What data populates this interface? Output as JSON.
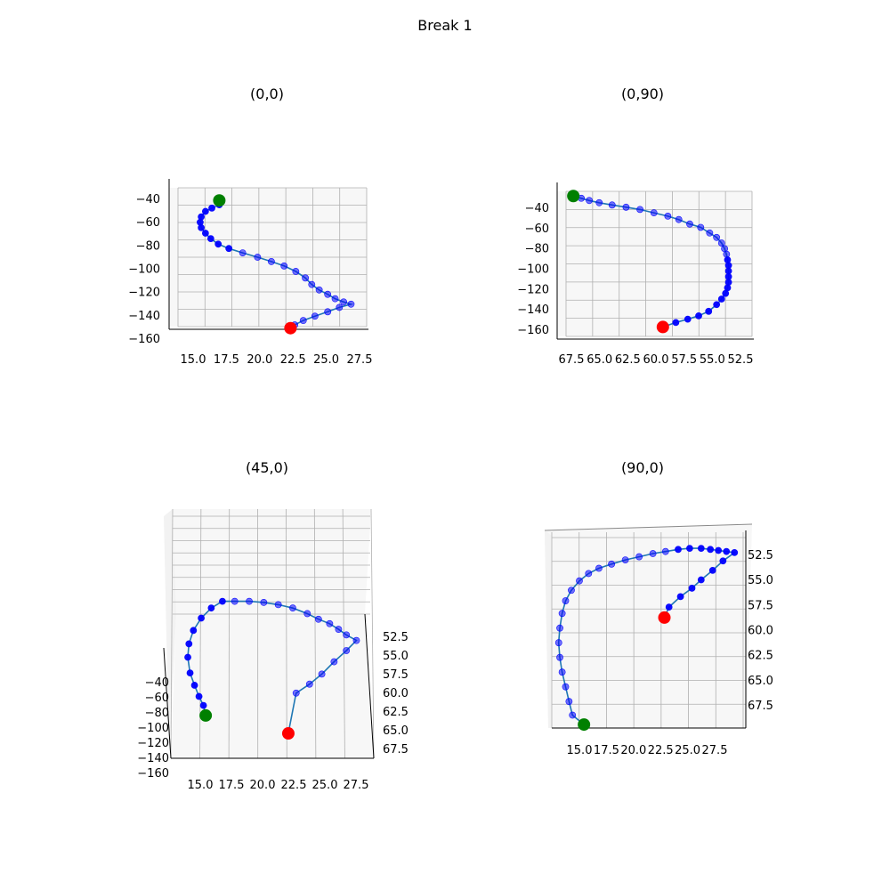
{
  "figure_title": "Break 1",
  "colors": {
    "pane": "#f2f2f2",
    "pane_alt": "#f7f7f7",
    "grid": "#b0b0b0",
    "line": "#1f77b4",
    "marker": "#0000ff",
    "start": "#008000",
    "end": "#ff0000"
  },
  "chart_data": [
    {
      "type": "scatter",
      "title": "(0,0)",
      "view": "x-z projection (elev 0, azim 0)",
      "x_ticks": [
        "15.0",
        "17.5",
        "20.0",
        "22.5",
        "25.0",
        "27.5"
      ],
      "y_ticks": [
        "−40",
        "−60",
        "−80",
        "−100",
        "−120",
        "−140",
        "−160"
      ],
      "xlim": [
        13.0,
        29.5
      ],
      "ylim": [
        -160,
        -32
      ],
      "points_x": [
        16.3,
        15.6,
        15.0,
        14.6,
        14.5,
        14.6,
        15.0,
        15.5,
        16.2,
        17.2,
        18.5,
        19.9,
        21.2,
        22.4,
        23.5,
        24.4,
        25.0,
        25.7,
        26.5,
        27.2,
        28.0,
        28.7,
        27.6,
        26.5,
        25.3,
        24.2,
        23.4
      ],
      "points_y": [
        -37,
        -40,
        -43,
        -48,
        -53,
        -58,
        -63,
        -68,
        -73,
        -77,
        -81,
        -85,
        -89,
        -93,
        -98,
        -104,
        -110,
        -115,
        -119,
        -123,
        -126,
        -128,
        -131,
        -135,
        -139,
        -143,
        -147
      ],
      "start_point": [
        16.3,
        -33
      ],
      "end_point": [
        23.0,
        -150
      ]
    },
    {
      "type": "scatter",
      "title": "(0,90)",
      "view": "y-z projection (elev 0, azim 90)",
      "x_ticks": [
        "67.5",
        "65.0",
        "62.5",
        "60.0",
        "57.5",
        "55.0",
        "52.5"
      ],
      "y_ticks": [
        "−40",
        "−60",
        "−80",
        "−100",
        "−120",
        "−140",
        "−160"
      ],
      "xlim": [
        69.5,
        51.7
      ],
      "ylim": [
        -160,
        -32
      ],
      "points_x": [
        67.7,
        66.9,
        65.9,
        64.6,
        63.2,
        61.8,
        60.4,
        59.0,
        57.9,
        56.8,
        55.7,
        54.8,
        54.1,
        53.6,
        53.3,
        53.1,
        53.0,
        52.9,
        52.9,
        52.9,
        52.9,
        53.0,
        53.2,
        53.6,
        54.1,
        54.9,
        55.9,
        57.0,
        58.2
      ],
      "points_y": [
        -35,
        -37,
        -39,
        -41,
        -43,
        -45,
        -48,
        -51,
        -54,
        -58,
        -61,
        -66,
        -70,
        -75,
        -80,
        -85,
        -90,
        -95,
        -100,
        -105,
        -110,
        -115,
        -120,
        -125,
        -130,
        -136,
        -140,
        -143,
        -146
      ],
      "start_point": [
        68.5,
        -33
      ],
      "end_point": [
        59.5,
        -150
      ]
    },
    {
      "type": "scatter",
      "title": "(45,0)",
      "view": "perspective view (elev 45, azim 0)",
      "x_ticks": [
        "15.0",
        "17.5",
        "20.0",
        "22.5",
        "25.0",
        "27.5"
      ],
      "y_ticks": [
        "52.5",
        "55.0",
        "57.5",
        "60.0",
        "62.5",
        "65.0",
        "67.5"
      ],
      "z_ticks": [
        "−40",
        "−60",
        "−80",
        "−100",
        "−120",
        "−140",
        "−160"
      ],
      "xlim": [
        13.0,
        29.5
      ],
      "ylim": [
        71.5,
        49.0
      ],
      "points_x": [
        15.2,
        14.8,
        14.4,
        14.0,
        13.8,
        13.9,
        14.3,
        15.0,
        15.9,
        16.9,
        18.0,
        19.3,
        20.6,
        21.9,
        23.2,
        24.5,
        25.5,
        26.5,
        27.3,
        28.0,
        28.9,
        28.0,
        26.9,
        25.8,
        24.7,
        23.5
      ],
      "points_y": [
        66.3,
        65.5,
        64.5,
        63.4,
        62.0,
        60.8,
        59.6,
        58.5,
        57.6,
        57.0,
        57.0,
        57.0,
        57.1,
        57.3,
        57.6,
        58.1,
        58.6,
        59.0,
        59.5,
        60.0,
        60.5,
        61.4,
        62.4,
        63.5,
        64.4,
        65.2
      ],
      "start_point": [
        15.4,
        67.2
      ],
      "end_point": [
        22.8,
        68.8
      ]
    },
    {
      "type": "scatter",
      "title": "(90,0)",
      "view": "x-y projection (elev 90, azim 0)",
      "x_ticks": [
        "15.0",
        "17.5",
        "20.0",
        "22.5",
        "25.0",
        "27.5"
      ],
      "y_ticks": [
        "52.5",
        "55.0",
        "57.5",
        "60.0",
        "62.5",
        "65.0",
        "67.5"
      ],
      "xlim": [
        13.0,
        29.5
      ],
      "ylim": [
        51.2,
        69.7
      ],
      "points_x": [
        14.8,
        14.5,
        14.2,
        13.9,
        13.7,
        13.6,
        13.7,
        13.9,
        14.2,
        14.7,
        15.4,
        16.2,
        17.1,
        18.2,
        19.4,
        20.6,
        21.8,
        22.9,
        24.0,
        25.0,
        26.0,
        26.8,
        27.5,
        28.2,
        28.9,
        27.9,
        27.0,
        26.0,
        25.2,
        24.2,
        23.2
      ],
      "points_y": [
        68.3,
        67.0,
        65.6,
        64.2,
        62.8,
        61.4,
        60.0,
        58.6,
        57.4,
        56.4,
        55.5,
        54.8,
        54.3,
        53.9,
        53.5,
        53.2,
        52.9,
        52.7,
        52.5,
        52.4,
        52.4,
        52.5,
        52.6,
        52.7,
        52.8,
        53.6,
        54.5,
        55.4,
        56.2,
        57.0,
        58.0
      ],
      "start_point": [
        15.8,
        69.2
      ],
      "end_point": [
        22.8,
        59.0
      ]
    }
  ]
}
